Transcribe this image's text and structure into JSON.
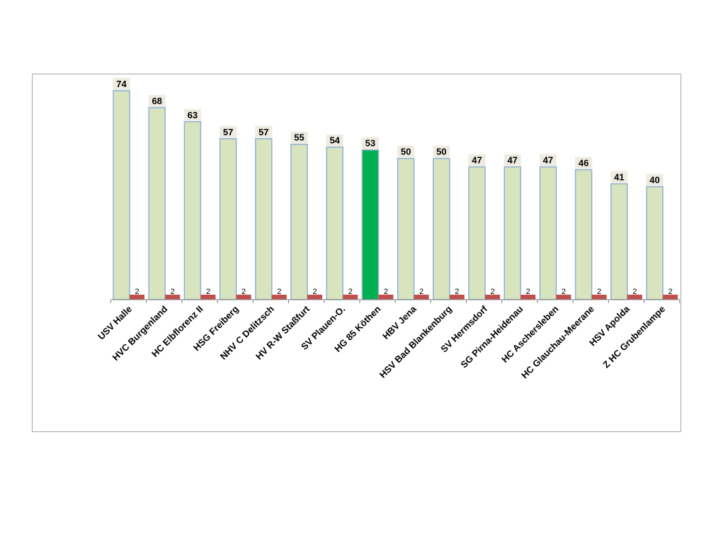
{
  "colors": {
    "main_bar": "#d7e4bd",
    "highlight_bar": "#00b050",
    "secondary_bar": "#c0504d",
    "label_background": "#eeece1",
    "bar_outline": "#8fb0d6"
  },
  "chart_data": {
    "type": "bar",
    "title": "",
    "xlabel": "",
    "ylabel": "",
    "ylim": [
      0,
      76
    ],
    "grid": false,
    "legend": "none",
    "highlight_category": "HG 85 Köthen",
    "categories": [
      "USV Halle",
      "HVC Burgenland",
      "HC Elbflorenz II",
      "HSG Freiberg",
      "NHV C Delitzsch",
      "HV R-W Staßfurt",
      "SV Plauen-O.",
      "HG 85 Köthen",
      "HBV Jena",
      "HSV Bad Blankenburg",
      "SV Hermsdorf",
      "SG Pirna-Heidenau",
      "HC Aschersleben",
      "HC Glauchau-Meerane",
      "HSV Apolda",
      "Z HC Grubenlampe"
    ],
    "series": [
      {
        "values": [
          74,
          68,
          63,
          57,
          57,
          55,
          54,
          53,
          50,
          50,
          47,
          47,
          47,
          46,
          41,
          40
        ]
      },
      {
        "values": [
          2,
          2,
          2,
          2,
          2,
          2,
          2,
          2,
          2,
          2,
          2,
          2,
          2,
          2,
          2,
          2
        ]
      }
    ]
  }
}
